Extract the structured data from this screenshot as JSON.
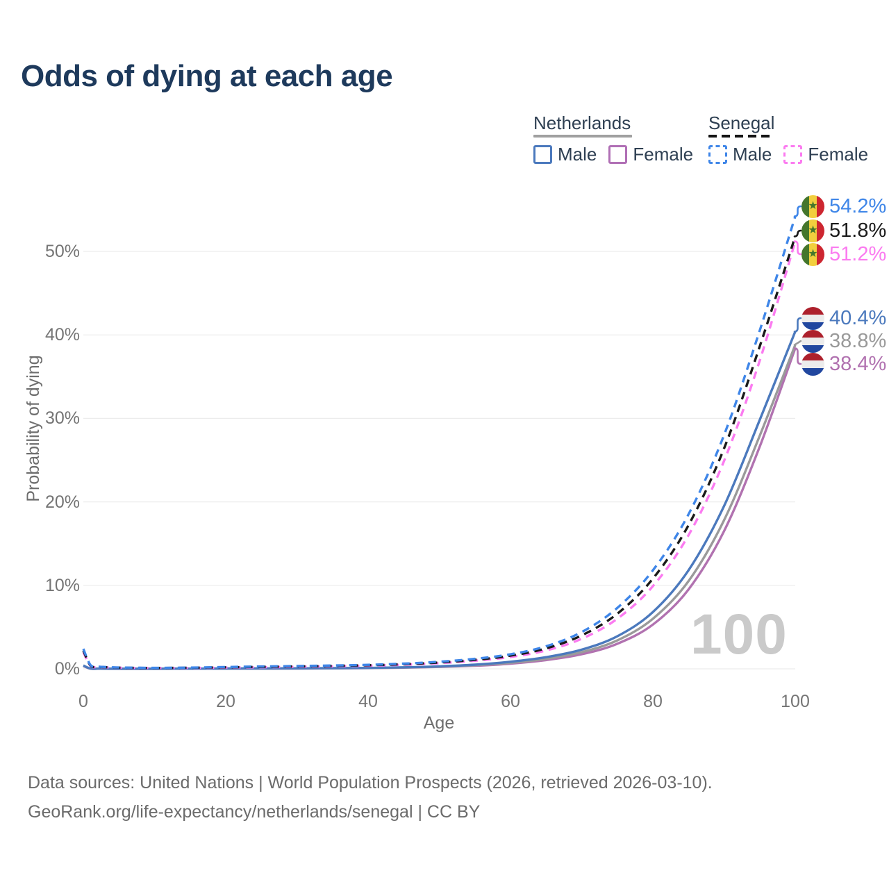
{
  "title": "Odds of dying at each age",
  "icons": {
    "senegal_star": "★"
  },
  "legend": {
    "groups": [
      {
        "label": "Netherlands",
        "line_color": "#a0a0a0",
        "dash": false,
        "items": [
          {
            "label": "Male",
            "color": "#4b79bd",
            "dash": false
          },
          {
            "label": "Female",
            "color": "#b06fb5",
            "dash": false
          }
        ]
      },
      {
        "label": "Senegal",
        "line_color": "#141414",
        "dash": true,
        "items": [
          {
            "label": "Male",
            "color": "#3f86e8",
            "dash": true
          },
          {
            "label": "Female",
            "color": "#fb7bf0",
            "dash": true
          }
        ]
      }
    ]
  },
  "chart_data": {
    "type": "line",
    "title": "Odds of dying at each age",
    "xlabel": "Age",
    "ylabel": "Probability of dying",
    "xlim": [
      0,
      100
    ],
    "ylim": [
      0,
      55
    ],
    "grid": "horizontal",
    "legend_position": "top-right",
    "hover_age": "100",
    "x_ticks": [
      0,
      20,
      40,
      60,
      80,
      100
    ],
    "y_ticks": [
      "0%",
      "10%",
      "20%",
      "30%",
      "40%",
      "50%"
    ],
    "x": [
      0,
      1,
      2,
      3,
      5,
      10,
      15,
      20,
      25,
      30,
      35,
      40,
      45,
      50,
      55,
      60,
      65,
      70,
      75,
      80,
      85,
      90,
      95,
      100
    ],
    "series": [
      {
        "name": "Senegal Male",
        "country": "Senegal",
        "sex": "Male",
        "color": "#3f86e8",
        "dash": true,
        "end_label": "54.2%",
        "values": [
          2.4,
          0.45,
          0.28,
          0.22,
          0.16,
          0.12,
          0.15,
          0.22,
          0.28,
          0.33,
          0.4,
          0.48,
          0.62,
          0.85,
          1.2,
          1.75,
          2.7,
          4.4,
          7.3,
          11.8,
          18.5,
          28.0,
          40.5,
          54.2
        ]
      },
      {
        "name": "Senegal (both sexes)",
        "country": "Senegal",
        "sex": "Both",
        "color": "#1a1a1a",
        "dash": true,
        "end_label": "51.8%",
        "values": [
          2.2,
          0.4,
          0.25,
          0.2,
          0.14,
          0.11,
          0.13,
          0.18,
          0.23,
          0.28,
          0.35,
          0.43,
          0.55,
          0.76,
          1.08,
          1.58,
          2.45,
          4.0,
          6.6,
          10.8,
          17.2,
          26.4,
          38.6,
          51.8
        ]
      },
      {
        "name": "Senegal Female",
        "country": "Senegal",
        "sex": "Female",
        "color": "#fb7bf0",
        "dash": true,
        "end_label": "51.2%",
        "values": [
          2.0,
          0.36,
          0.22,
          0.18,
          0.13,
          0.1,
          0.11,
          0.15,
          0.19,
          0.24,
          0.3,
          0.38,
          0.49,
          0.68,
          0.97,
          1.42,
          2.2,
          3.6,
          6.0,
          9.9,
          16.0,
          24.9,
          36.9,
          51.2
        ]
      },
      {
        "name": "Netherlands Male",
        "country": "Netherlands",
        "sex": "Male",
        "color": "#4b79bd",
        "dash": false,
        "end_label": "40.4%",
        "values": [
          0.4,
          0.03,
          0.02,
          0.02,
          0.01,
          0.01,
          0.02,
          0.04,
          0.05,
          0.06,
          0.08,
          0.11,
          0.18,
          0.3,
          0.5,
          0.85,
          1.4,
          2.3,
          3.9,
          6.8,
          11.8,
          19.5,
          29.8,
          40.4
        ]
      },
      {
        "name": "Netherlands (both sexes)",
        "country": "Netherlands",
        "sex": "Both",
        "color": "#9a9a9a",
        "dash": false,
        "end_label": "38.8%",
        "values": [
          0.37,
          0.03,
          0.02,
          0.02,
          0.01,
          0.01,
          0.02,
          0.03,
          0.04,
          0.05,
          0.07,
          0.1,
          0.16,
          0.26,
          0.43,
          0.72,
          1.2,
          2.0,
          3.4,
          6.0,
          10.5,
          17.8,
          27.9,
          38.8
        ]
      },
      {
        "name": "Netherlands Female",
        "country": "Netherlands",
        "sex": "Female",
        "color": "#b172b0",
        "dash": false,
        "end_label": "38.4%",
        "values": [
          0.34,
          0.02,
          0.02,
          0.01,
          0.01,
          0.01,
          0.015,
          0.025,
          0.03,
          0.045,
          0.06,
          0.09,
          0.14,
          0.23,
          0.37,
          0.62,
          1.05,
          1.75,
          3.0,
          5.3,
          9.5,
          16.5,
          26.6,
          38.4
        ]
      }
    ]
  },
  "footer": {
    "line1": "Data sources: United Nations | World Population Prospects (2026, retrieved 2026-03-10).",
    "line2": "GeoRank.org/life-expectancy/netherlands/senegal | CC BY"
  }
}
